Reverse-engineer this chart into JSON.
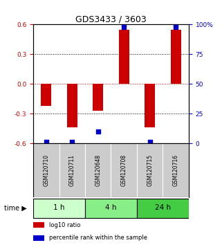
{
  "title": "GDS3433 / 3603",
  "samples": [
    "GSM120710",
    "GSM120711",
    "GSM120648",
    "GSM120708",
    "GSM120715",
    "GSM120716"
  ],
  "log10_ratio": [
    -0.22,
    -0.44,
    -0.27,
    0.55,
    -0.44,
    0.55
  ],
  "percentile_rank": [
    1,
    1,
    10,
    98,
    1,
    98
  ],
  "ylim_left": [
    -0.6,
    0.6
  ],
  "ylim_right": [
    0,
    100
  ],
  "yticks_left": [
    -0.6,
    -0.3,
    0.0,
    0.3,
    0.6
  ],
  "yticks_right": [
    0,
    25,
    50,
    75,
    100
  ],
  "ytick_labels_right": [
    "0",
    "25",
    "50",
    "75",
    "100%"
  ],
  "bar_color": "#cc0000",
  "dot_color": "#0000cc",
  "bar_width": 0.4,
  "dot_size": 25,
  "background_plot": "#ffffff",
  "background_sample": "#cccccc",
  "background_1h": "#ccffcc",
  "background_4h": "#88ee88",
  "background_24h": "#44cc44",
  "group_labels": [
    "1 h",
    "4 h",
    "24 h"
  ],
  "group_ranges": [
    [
      0,
      1
    ],
    [
      2,
      3
    ],
    [
      4,
      5
    ]
  ],
  "group_colors": [
    "#ccffcc",
    "#88ee88",
    "#44cc44"
  ],
  "legend_labels": [
    "log10 ratio",
    "percentile rank within the sample"
  ],
  "legend_colors": [
    "#cc0000",
    "#0000cc"
  ]
}
